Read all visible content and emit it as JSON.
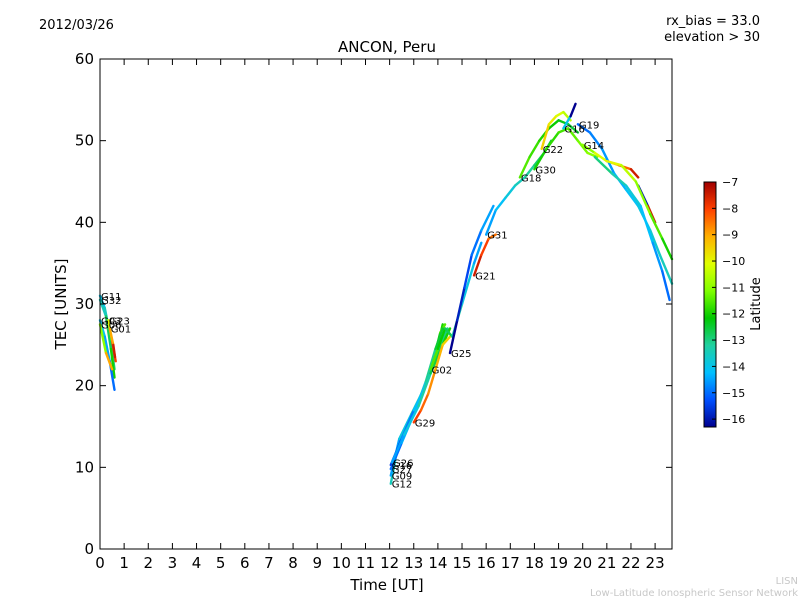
{
  "header": {
    "date": "2012/03/26",
    "rx_bias": "rx_bias = 33.0",
    "elevation": "elevation > 30"
  },
  "footer": {
    "credit_line1": "LISN",
    "credit_line2": "Low-Latitude Ionospheric Sensor Network"
  },
  "chart_data": {
    "type": "line",
    "title": "ANCON, Peru",
    "xlabel": "Time [UT]",
    "ylabel": "TEC [UNITS]",
    "xlim": [
      0,
      23.7
    ],
    "ylim": [
      0,
      60
    ],
    "xticks": [
      0,
      1,
      2,
      3,
      4,
      5,
      6,
      7,
      8,
      9,
      10,
      11,
      12,
      13,
      14,
      15,
      16,
      17,
      18,
      19,
      20,
      21,
      22,
      23
    ],
    "yticks": [
      0,
      10,
      20,
      30,
      40,
      50,
      60
    ],
    "grid": false,
    "colorbar": {
      "label": "Latitude",
      "range": [
        -16.3,
        -7
      ],
      "ticks": [
        -7,
        -8,
        -9,
        -10,
        -11,
        -12,
        -13,
        -14,
        -15,
        -16
      ],
      "colormap": [
        "#00008f",
        "#0050ff",
        "#00c0ff",
        "#20d0a0",
        "#00c800",
        "#80ff00",
        "#e0ff00",
        "#ffb000",
        "#ff4000",
        "#a00000"
      ]
    },
    "series": [
      {
        "name": "G11",
        "points": [
          [
            0.0,
            31.0
          ],
          [
            0.2,
            29.5
          ],
          [
            0.4,
            26.5
          ],
          [
            0.6,
            22.0
          ]
        ],
        "lat_start": -14.0,
        "lat_end": -13.0
      },
      {
        "name": "G32",
        "points": [
          [
            0.0,
            30.5
          ],
          [
            0.25,
            28.5
          ],
          [
            0.45,
            24.5
          ],
          [
            0.6,
            21.0
          ]
        ],
        "lat_start": -13.5,
        "lat_end": -12.0
      },
      {
        "name": "G03",
        "points": [
          [
            0.0,
            28.0
          ],
          [
            0.2,
            26.0
          ],
          [
            0.4,
            23.0
          ],
          [
            0.6,
            19.5
          ]
        ],
        "lat_start": -14.0,
        "lat_end": -15.0
      },
      {
        "name": "G06",
        "points": [
          [
            0.0,
            27.5
          ],
          [
            0.25,
            24.0
          ],
          [
            0.5,
            22.0
          ]
        ],
        "lat_start": -11.0,
        "lat_end": -9.0
      },
      {
        "name": "G23",
        "points": [
          [
            0.35,
            28.0
          ],
          [
            0.5,
            25.5
          ],
          [
            0.65,
            23.0
          ]
        ],
        "lat_start": -10.0,
        "lat_end": -8.0
      },
      {
        "name": "G01",
        "points": [
          [
            0.4,
            27.0
          ],
          [
            0.55,
            25.0
          ],
          [
            0.62,
            23.5
          ]
        ],
        "lat_start": -9.0,
        "lat_end": -7.5
      },
      {
        "name": "G12",
        "points": [
          [
            12.05,
            8.0
          ],
          [
            12.3,
            12.0
          ],
          [
            12.8,
            15.5
          ],
          [
            13.3,
            18.5
          ],
          [
            13.7,
            22.0
          ],
          [
            14.0,
            25.0
          ],
          [
            14.2,
            27.5
          ]
        ],
        "lat_start": -13.5,
        "lat_end": -12.0
      },
      {
        "name": "G09",
        "points": [
          [
            12.05,
            9.0
          ],
          [
            12.4,
            13.5
          ],
          [
            12.9,
            16.5
          ],
          [
            13.4,
            19.5
          ],
          [
            13.8,
            23.0
          ],
          [
            14.1,
            26.5
          ],
          [
            14.3,
            27.5
          ]
        ],
        "lat_start": -14.5,
        "lat_end": -11.5
      },
      {
        "name": "G27",
        "points": [
          [
            12.05,
            9.8
          ],
          [
            12.5,
            13.0
          ],
          [
            13.0,
            16.5
          ],
          [
            13.5,
            20.5
          ],
          [
            13.9,
            24.5
          ],
          [
            14.2,
            27.0
          ]
        ],
        "lat_start": -15.0,
        "lat_end": -12.5
      },
      {
        "name": "G16",
        "points": [
          [
            12.05,
            10.3
          ],
          [
            12.5,
            13.5
          ],
          [
            13.0,
            17.0
          ],
          [
            13.5,
            20.0
          ],
          [
            14.0,
            24.0
          ],
          [
            14.4,
            27.0
          ]
        ],
        "lat_start": -15.5,
        "lat_end": -13.0
      },
      {
        "name": "G26",
        "points": [
          [
            12.1,
            10.6
          ],
          [
            12.6,
            14.0
          ],
          [
            13.2,
            17.5
          ],
          [
            13.7,
            21.5
          ],
          [
            14.2,
            25.0
          ],
          [
            14.5,
            27.0
          ]
        ],
        "lat_start": -14.5,
        "lat_end": -12.0
      },
      {
        "name": "G29",
        "points": [
          [
            13.0,
            15.5
          ],
          [
            13.3,
            17.0
          ],
          [
            13.6,
            19.0
          ],
          [
            13.9,
            22.0
          ],
          [
            14.2,
            25.0
          ],
          [
            14.5,
            26.0
          ]
        ],
        "lat_start": -8.0,
        "lat_end": -9.5
      },
      {
        "name": "G02",
        "points": [
          [
            13.7,
            22.0
          ],
          [
            14.0,
            24.5
          ],
          [
            14.3,
            27.0
          ],
          [
            14.6,
            26.0
          ],
          [
            15.0,
            30.0
          ],
          [
            15.5,
            35.0
          ],
          [
            15.8,
            37.5
          ]
        ],
        "lat_start": -11.5,
        "lat_end": -14.5
      },
      {
        "name": "G25",
        "points": [
          [
            14.5,
            24.0
          ],
          [
            14.8,
            28.0
          ],
          [
            15.1,
            32.0
          ],
          [
            15.4,
            36.0
          ],
          [
            15.8,
            39.0
          ],
          [
            16.3,
            42.0
          ]
        ],
        "lat_start": -16.3,
        "lat_end": -14.5
      },
      {
        "name": "G21",
        "points": [
          [
            15.5,
            33.5
          ],
          [
            15.8,
            36.0
          ],
          [
            16.1,
            38.0
          ],
          [
            16.4,
            38.5
          ]
        ],
        "lat_start": -7.5,
        "lat_end": -8.5
      },
      {
        "name": "G31",
        "points": [
          [
            16.0,
            38.5
          ],
          [
            16.4,
            41.5
          ],
          [
            16.8,
            43.0
          ],
          [
            17.2,
            44.5
          ],
          [
            17.6,
            45.5
          ],
          [
            18.0,
            47.0
          ],
          [
            18.4,
            48.5
          ],
          [
            18.7,
            50.0
          ]
        ],
        "lat_start": -14.5,
        "lat_end": -12.5
      },
      {
        "name": "G18",
        "points": [
          [
            17.4,
            45.5
          ],
          [
            17.8,
            48.0
          ],
          [
            18.2,
            50.0
          ],
          [
            18.6,
            51.5
          ],
          [
            19.0,
            52.5
          ],
          [
            19.4,
            52.0
          ],
          [
            19.8,
            51.0
          ]
        ],
        "lat_start": -11.5,
        "lat_end": -12.5
      },
      {
        "name": "G30",
        "points": [
          [
            18.0,
            46.5
          ],
          [
            18.5,
            49.0
          ],
          [
            19.0,
            51.0
          ],
          [
            19.4,
            51.5
          ],
          [
            19.8,
            50.0
          ],
          [
            20.2,
            48.5
          ],
          [
            20.6,
            48.0
          ]
        ],
        "lat_start": -12.0,
        "lat_end": -11.0
      },
      {
        "name": "G22",
        "points": [
          [
            18.3,
            49.0
          ],
          [
            18.6,
            52.0
          ],
          [
            18.9,
            53.0
          ],
          [
            19.2,
            53.5
          ],
          [
            19.5,
            52.5
          ]
        ],
        "lat_start": -9.5,
        "lat_end": -10.5
      },
      {
        "name": "G16",
        "points": [
          [
            19.2,
            51.5
          ],
          [
            19.5,
            53.0
          ],
          [
            19.7,
            54.5
          ]
        ],
        "lat_start": -14.0,
        "lat_end": -16.3
      },
      {
        "name": "G14",
        "points": [
          [
            20.0,
            49.5
          ],
          [
            20.5,
            48.5
          ],
          [
            21.0,
            47.5
          ],
          [
            21.5,
            47.0
          ],
          [
            22.0,
            46.5
          ],
          [
            22.3,
            45.5
          ]
        ],
        "lat_start": -11.0,
        "lat_end": -7.5
      },
      {
        "name": "G19",
        "points": [
          [
            19.8,
            52.0
          ],
          [
            20.3,
            51.0
          ],
          [
            20.8,
            49.0
          ],
          [
            21.3,
            46.0
          ],
          [
            21.8,
            44.0
          ],
          [
            22.3,
            42.0
          ],
          [
            22.8,
            39.0
          ],
          [
            23.2,
            36.0
          ],
          [
            23.7,
            32.5
          ]
        ],
        "lat_start": -15.0,
        "lat_end": -13.5
      },
      {
        "name": "",
        "points": [
          [
            22.3,
            44.5
          ],
          [
            22.7,
            42.0
          ],
          [
            23.0,
            40.0
          ]
        ],
        "lat_start": -16.0,
        "lat_end": -7.5
      },
      {
        "name": "",
        "points": [
          [
            21.0,
            47.5
          ],
          [
            21.6,
            47.0
          ],
          [
            22.2,
            45.0
          ],
          [
            22.8,
            41.0
          ],
          [
            23.3,
            38.0
          ],
          [
            23.7,
            35.5
          ]
        ],
        "lat_start": -10.0,
        "lat_end": -12.0
      },
      {
        "name": "",
        "points": [
          [
            20.5,
            48.0
          ],
          [
            21.2,
            46.0
          ],
          [
            21.8,
            44.5
          ],
          [
            22.4,
            42.0
          ],
          [
            22.9,
            37.5
          ],
          [
            23.3,
            34.0
          ],
          [
            23.6,
            30.5
          ]
        ],
        "lat_start": -13.0,
        "lat_end": -15.0
      }
    ]
  }
}
